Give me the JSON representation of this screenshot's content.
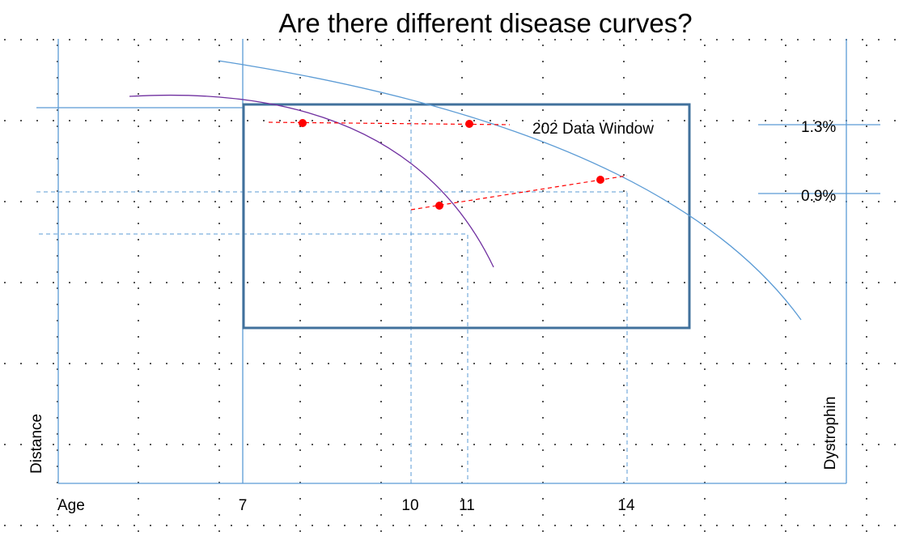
{
  "title": "Are there different disease curves?",
  "axes": {
    "x_label": "Age",
    "y_left_label": "Distance",
    "y_right_label": "Dystrophin",
    "x_ticks": [
      "7",
      "10",
      "11",
      "14"
    ]
  },
  "data_window": {
    "label": "202 Data Window"
  },
  "right_markers": [
    "1.3%",
    "0.9%"
  ],
  "colors": {
    "axis": "#5b9bd5",
    "curve_primary": "#5b9bd5",
    "curve_secondary": "#7030a0",
    "window_border": "#41719c",
    "marker": "#ff0000",
    "grid_dots": "#555555"
  }
}
